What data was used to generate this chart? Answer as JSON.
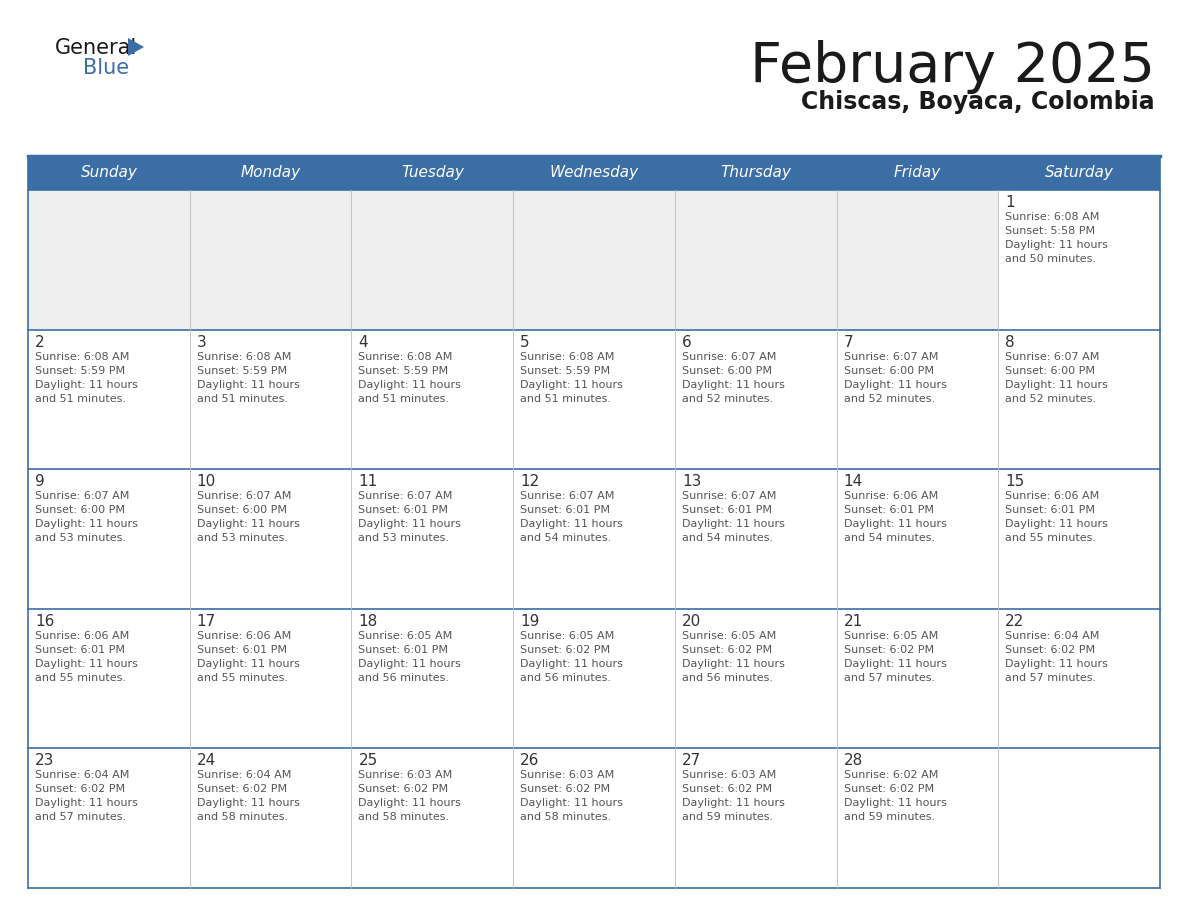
{
  "title": "February 2025",
  "subtitle": "Chiscas, Boyaca, Colombia",
  "days_of_week": [
    "Sunday",
    "Monday",
    "Tuesday",
    "Wednesday",
    "Thursday",
    "Friday",
    "Saturday"
  ],
  "header_bg": "#3b6ea5",
  "header_text": "#ffffff",
  "cell_bg_white": "#ffffff",
  "cell_bg_gray": "#f0f0f0",
  "border_color": "#3b6ea5",
  "day_number_color": "#333333",
  "text_color": "#555555",
  "title_color": "#1a1a1a",
  "subtitle_color": "#1a1a1a",
  "logo_general_color": "#1a1a1a",
  "logo_blue_color": "#3b6ea5",
  "logo_triangle_color": "#3b6ea5",
  "calendar_data": [
    [
      null,
      null,
      null,
      null,
      null,
      null,
      {
        "day": "1",
        "sunrise": "6:08 AM",
        "sunset": "5:58 PM",
        "daylight_line1": "Daylight: 11 hours",
        "daylight_line2": "and 50 minutes."
      }
    ],
    [
      {
        "day": "2",
        "sunrise": "6:08 AM",
        "sunset": "5:59 PM",
        "daylight_line1": "Daylight: 11 hours",
        "daylight_line2": "and 51 minutes."
      },
      {
        "day": "3",
        "sunrise": "6:08 AM",
        "sunset": "5:59 PM",
        "daylight_line1": "Daylight: 11 hours",
        "daylight_line2": "and 51 minutes."
      },
      {
        "day": "4",
        "sunrise": "6:08 AM",
        "sunset": "5:59 PM",
        "daylight_line1": "Daylight: 11 hours",
        "daylight_line2": "and 51 minutes."
      },
      {
        "day": "5",
        "sunrise": "6:08 AM",
        "sunset": "5:59 PM",
        "daylight_line1": "Daylight: 11 hours",
        "daylight_line2": "and 51 minutes."
      },
      {
        "day": "6",
        "sunrise": "6:07 AM",
        "sunset": "6:00 PM",
        "daylight_line1": "Daylight: 11 hours",
        "daylight_line2": "and 52 minutes."
      },
      {
        "day": "7",
        "sunrise": "6:07 AM",
        "sunset": "6:00 PM",
        "daylight_line1": "Daylight: 11 hours",
        "daylight_line2": "and 52 minutes."
      },
      {
        "day": "8",
        "sunrise": "6:07 AM",
        "sunset": "6:00 PM",
        "daylight_line1": "Daylight: 11 hours",
        "daylight_line2": "and 52 minutes."
      }
    ],
    [
      {
        "day": "9",
        "sunrise": "6:07 AM",
        "sunset": "6:00 PM",
        "daylight_line1": "Daylight: 11 hours",
        "daylight_line2": "and 53 minutes."
      },
      {
        "day": "10",
        "sunrise": "6:07 AM",
        "sunset": "6:00 PM",
        "daylight_line1": "Daylight: 11 hours",
        "daylight_line2": "and 53 minutes."
      },
      {
        "day": "11",
        "sunrise": "6:07 AM",
        "sunset": "6:01 PM",
        "daylight_line1": "Daylight: 11 hours",
        "daylight_line2": "and 53 minutes."
      },
      {
        "day": "12",
        "sunrise": "6:07 AM",
        "sunset": "6:01 PM",
        "daylight_line1": "Daylight: 11 hours",
        "daylight_line2": "and 54 minutes."
      },
      {
        "day": "13",
        "sunrise": "6:07 AM",
        "sunset": "6:01 PM",
        "daylight_line1": "Daylight: 11 hours",
        "daylight_line2": "and 54 minutes."
      },
      {
        "day": "14",
        "sunrise": "6:06 AM",
        "sunset": "6:01 PM",
        "daylight_line1": "Daylight: 11 hours",
        "daylight_line2": "and 54 minutes."
      },
      {
        "day": "15",
        "sunrise": "6:06 AM",
        "sunset": "6:01 PM",
        "daylight_line1": "Daylight: 11 hours",
        "daylight_line2": "and 55 minutes."
      }
    ],
    [
      {
        "day": "16",
        "sunrise": "6:06 AM",
        "sunset": "6:01 PM",
        "daylight_line1": "Daylight: 11 hours",
        "daylight_line2": "and 55 minutes."
      },
      {
        "day": "17",
        "sunrise": "6:06 AM",
        "sunset": "6:01 PM",
        "daylight_line1": "Daylight: 11 hours",
        "daylight_line2": "and 55 minutes."
      },
      {
        "day": "18",
        "sunrise": "6:05 AM",
        "sunset": "6:01 PM",
        "daylight_line1": "Daylight: 11 hours",
        "daylight_line2": "and 56 minutes."
      },
      {
        "day": "19",
        "sunrise": "6:05 AM",
        "sunset": "6:02 PM",
        "daylight_line1": "Daylight: 11 hours",
        "daylight_line2": "and 56 minutes."
      },
      {
        "day": "20",
        "sunrise": "6:05 AM",
        "sunset": "6:02 PM",
        "daylight_line1": "Daylight: 11 hours",
        "daylight_line2": "and 56 minutes."
      },
      {
        "day": "21",
        "sunrise": "6:05 AM",
        "sunset": "6:02 PM",
        "daylight_line1": "Daylight: 11 hours",
        "daylight_line2": "and 57 minutes."
      },
      {
        "day": "22",
        "sunrise": "6:04 AM",
        "sunset": "6:02 PM",
        "daylight_line1": "Daylight: 11 hours",
        "daylight_line2": "and 57 minutes."
      }
    ],
    [
      {
        "day": "23",
        "sunrise": "6:04 AM",
        "sunset": "6:02 PM",
        "daylight_line1": "Daylight: 11 hours",
        "daylight_line2": "and 57 minutes."
      },
      {
        "day": "24",
        "sunrise": "6:04 AM",
        "sunset": "6:02 PM",
        "daylight_line1": "Daylight: 11 hours",
        "daylight_line2": "and 58 minutes."
      },
      {
        "day": "25",
        "sunrise": "6:03 AM",
        "sunset": "6:02 PM",
        "daylight_line1": "Daylight: 11 hours",
        "daylight_line2": "and 58 minutes."
      },
      {
        "day": "26",
        "sunrise": "6:03 AM",
        "sunset": "6:02 PM",
        "daylight_line1": "Daylight: 11 hours",
        "daylight_line2": "and 58 minutes."
      },
      {
        "day": "27",
        "sunrise": "6:03 AM",
        "sunset": "6:02 PM",
        "daylight_line1": "Daylight: 11 hours",
        "daylight_line2": "and 59 minutes."
      },
      {
        "day": "28",
        "sunrise": "6:02 AM",
        "sunset": "6:02 PM",
        "daylight_line1": "Daylight: 11 hours",
        "daylight_line2": "and 59 minutes."
      },
      null
    ]
  ]
}
